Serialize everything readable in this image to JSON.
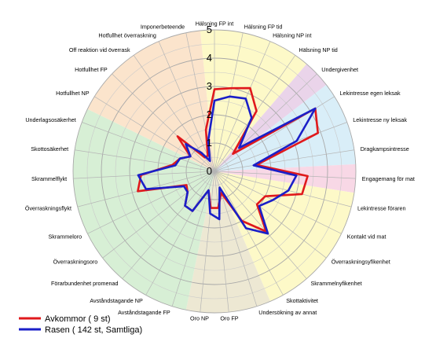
{
  "chart_data": {
    "type": "radar",
    "title": "",
    "rmax": 5,
    "ticks": [
      "0",
      "1",
      "2",
      "3",
      "4",
      "5"
    ],
    "categories": [
      "Hälsning FP int",
      "Hälsning FP tid",
      "Hälsning NP int",
      "Hälsning NP tid",
      "Undergivenhet",
      "Lekintresse egen leksak",
      "Lekintresse ny leksak",
      "Dragkampsintresse",
      "Engagemang för mat",
      "Lekintresse föraren",
      "Kontakt vid mat",
      "Överraskningsyfikenhet",
      "Skrammelnyfikenhet",
      "Skottaktivitet",
      "Undersökning av annat",
      "Oro FP",
      "Oro NP",
      "Avståndstagande FP",
      "Avståndstagande NP",
      "Förarbundenhet promenad",
      "Överraskningsoro",
      "Skrammeloro",
      "Överraskningsflykt",
      "Skrammelflykt",
      "Skottosäkerhet",
      "Underlagsosäkerhet",
      "Hotfullhet NP",
      "Hotfullhet FP",
      "Off reaktion vid överrask",
      "Hotfullhet överraskning",
      "Imponerbeteende"
    ],
    "series": [
      {
        "name": "Avkommor ( 9 st)",
        "color": "#e0191c",
        "values": [
          2.9,
          3.0,
          3.2,
          2.6,
          0.9,
          4.2,
          3.9,
          1.5,
          3.3,
          3.2,
          2.0,
          1.9,
          2.8,
          2.0,
          0.8,
          1.3,
          1.3,
          0.7,
          1.6,
          1.6,
          1.2,
          1.1,
          2.8,
          2.6,
          1.5,
          1.3,
          1.0,
          1.8,
          0.6,
          0.6,
          1.5
        ]
      },
      {
        "name": "Rasen ( 142 st, Samtliga)",
        "color": "#1a1fc8",
        "values": [
          2.5,
          2.7,
          2.8,
          2.3,
          1.2,
          4.2,
          3.1,
          1.4,
          2.9,
          2.7,
          2.3,
          2.0,
          2.9,
          2.3,
          0.6,
          1.7,
          1.5,
          0.7,
          1.6,
          1.6,
          1.2,
          1.2,
          2.5,
          2.7,
          1.4,
          1.3,
          1.0,
          1.4,
          0.8,
          0.4,
          1.1
        ]
      }
    ],
    "sectors": [
      {
        "from": 0,
        "to": 3,
        "color": "#fdf9c8"
      },
      {
        "from": 4,
        "to": 4,
        "color": "#ead4ea"
      },
      {
        "from": 5,
        "to": 7,
        "color": "#d9eef8"
      },
      {
        "from": 8,
        "to": 8,
        "color": "#f8d8e6"
      },
      {
        "from": 9,
        "to": 13,
        "color": "#fdf9c8"
      },
      {
        "from": 14,
        "to": 16,
        "color": "#ede8d3"
      },
      {
        "from": 17,
        "to": 25,
        "color": "#d7efd5"
      },
      {
        "from": 26,
        "to": 30,
        "color": "#fbe4cc"
      }
    ],
    "legend_position": "bottom-left"
  }
}
